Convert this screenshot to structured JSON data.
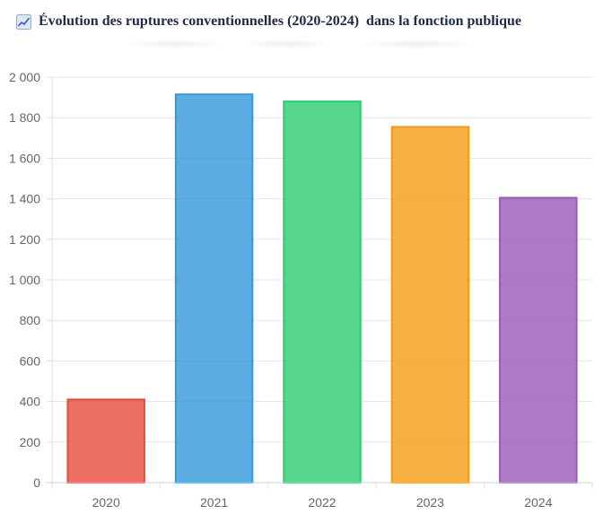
{
  "header": {
    "title": "Évolution des ruptures conventionnelles (2020-2024)  dans la fonction publique",
    "icon": "chart-line-icon"
  },
  "chart_data": {
    "type": "bar",
    "title": "Évolution des ruptures conventionnelles (2020-2024)  dans la fonction publique",
    "categories": [
      "2020",
      "2021",
      "2022",
      "2023",
      "2024"
    ],
    "values": [
      410,
      1915,
      1880,
      1755,
      1405
    ],
    "colors": [
      "#e74c3c",
      "#3498db",
      "#2ecc71",
      "#f39c12",
      "#9b59b6"
    ],
    "ylim": [
      0,
      2000
    ],
    "yticks": [
      0,
      200,
      400,
      600,
      800,
      1000,
      1200,
      1400,
      1600,
      1800,
      2000
    ],
    "ytick_labels": [
      "0",
      "200",
      "400",
      "600",
      "800",
      "1 000",
      "1 200",
      "1 400",
      "1 600",
      "1 800",
      "2 000"
    ],
    "xlabel": "",
    "ylabel": "",
    "grid": true,
    "legend": "none"
  }
}
